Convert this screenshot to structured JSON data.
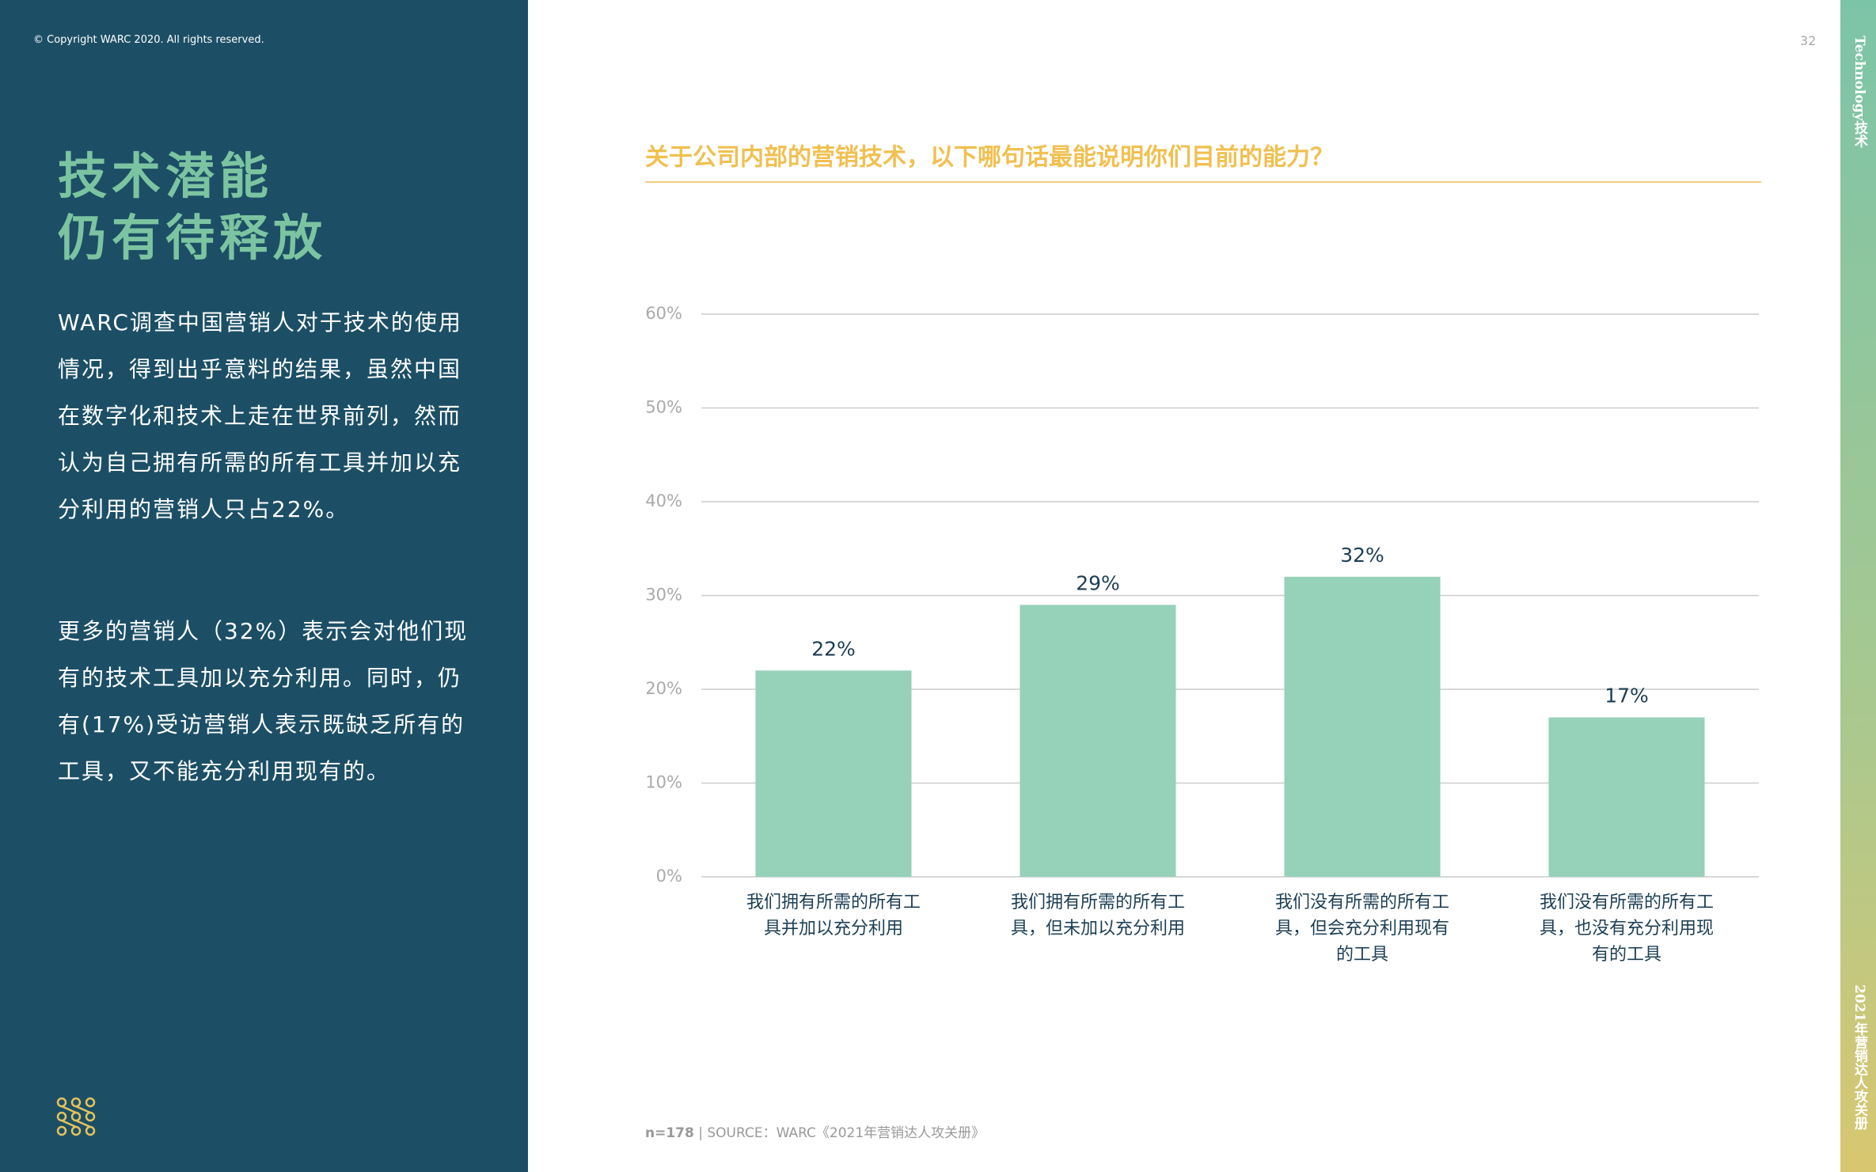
{
  "page": {
    "copyright": "© Copyright WARC 2020. All rights reserved.",
    "page_number": "32",
    "section": "Technology技术",
    "publication": "2021年营销达人攻关册",
    "title_lines": [
      "技术潜能",
      "仍有待释放"
    ],
    "body": [
      "WARC调查中国营销人对于技术的使用情况，得到出乎意料的结果，虽然中国在数字化和技术上走在世界前列，然而认为自己拥有所需的所有工具并加以充分利用的营销人只占22%。",
      "更多的营销人（32%）表示会对他们现有的技术工具加以充分利用。同时，仍有(17%)受访营销人表示既缺乏所有的工具，又不能充分利用现有的。"
    ],
    "sample": "n=178",
    "source": "| SOURCE：WARC《2021年营销达人攻关册》"
  },
  "chart_data": {
    "type": "bar",
    "title": "关于公司内部的营销技术，以下哪句话最能说明你们目前的能力？",
    "categories": [
      "我们拥有所需的所有工具并加以充分利用",
      "我们拥有所需的所有工具，但未加以充分利用",
      "我们没有所需的所有工具，但会充分利用现有的工具",
      "我们没有所需的所有工具，也没有充分利用现有的工具"
    ],
    "values": [
      22,
      29,
      32,
      17
    ],
    "value_labels": [
      "22%",
      "29%",
      "32%",
      "17%"
    ],
    "color": "#96d1b9",
    "ylim": [
      0,
      60
    ],
    "yticks": [
      {
        "value": 0,
        "label": "0%"
      },
      {
        "value": 10,
        "label": "10%"
      },
      {
        "value": 20,
        "label": "20%"
      },
      {
        "value": 30,
        "label": "30%"
      },
      {
        "value": 40,
        "label": "40%"
      },
      {
        "value": 50,
        "label": "50%"
      },
      {
        "value": 60,
        "label": "60%"
      }
    ],
    "grid": true
  }
}
